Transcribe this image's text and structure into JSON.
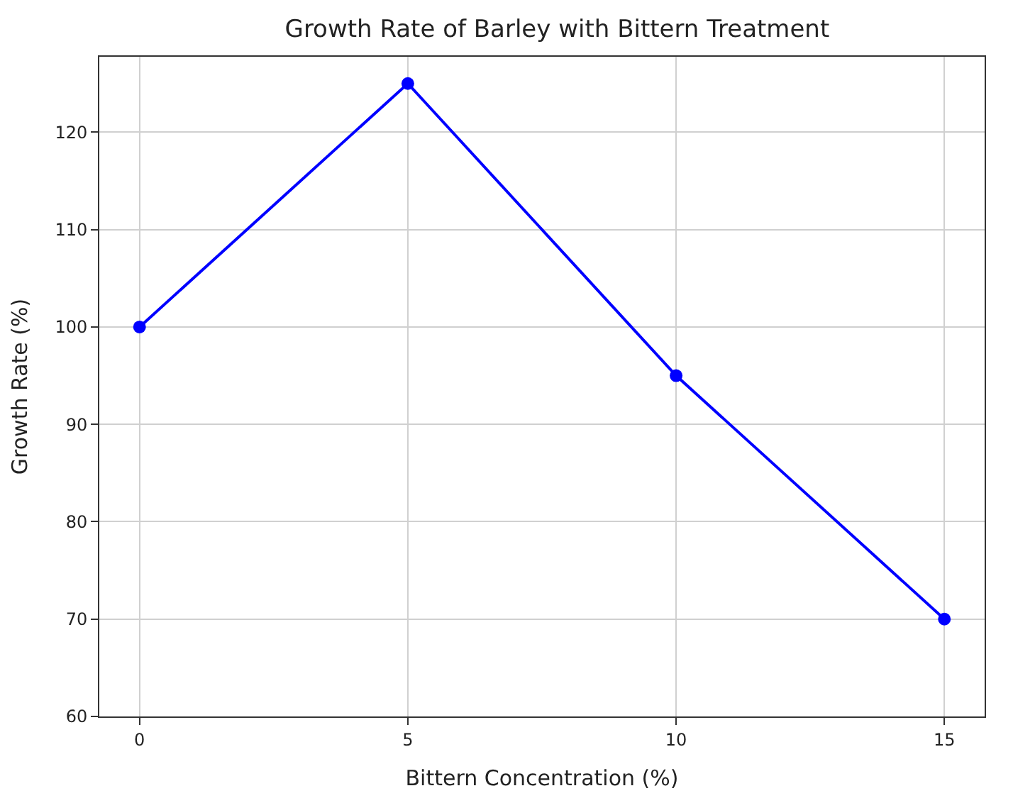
{
  "chart_data": {
    "type": "line",
    "title": "Growth Rate of Barley with Bittern Treatment",
    "xlabel": "Bittern Concentration (%)",
    "ylabel": "Growth Rate (%)",
    "x": [
      0,
      5,
      10,
      15
    ],
    "series": [
      {
        "color": "#0000ff",
        "values": [
          100,
          125,
          95,
          70
        ]
      }
    ],
    "xlim": [
      -0.75,
      15.75
    ],
    "xticks": [
      0,
      5,
      10,
      15
    ],
    "ylim": [
      60,
      127.75
    ],
    "yticks": [
      60,
      70,
      80,
      90,
      100,
      110,
      120
    ],
    "grid": true,
    "marker": "circle",
    "line_style": "solid"
  }
}
